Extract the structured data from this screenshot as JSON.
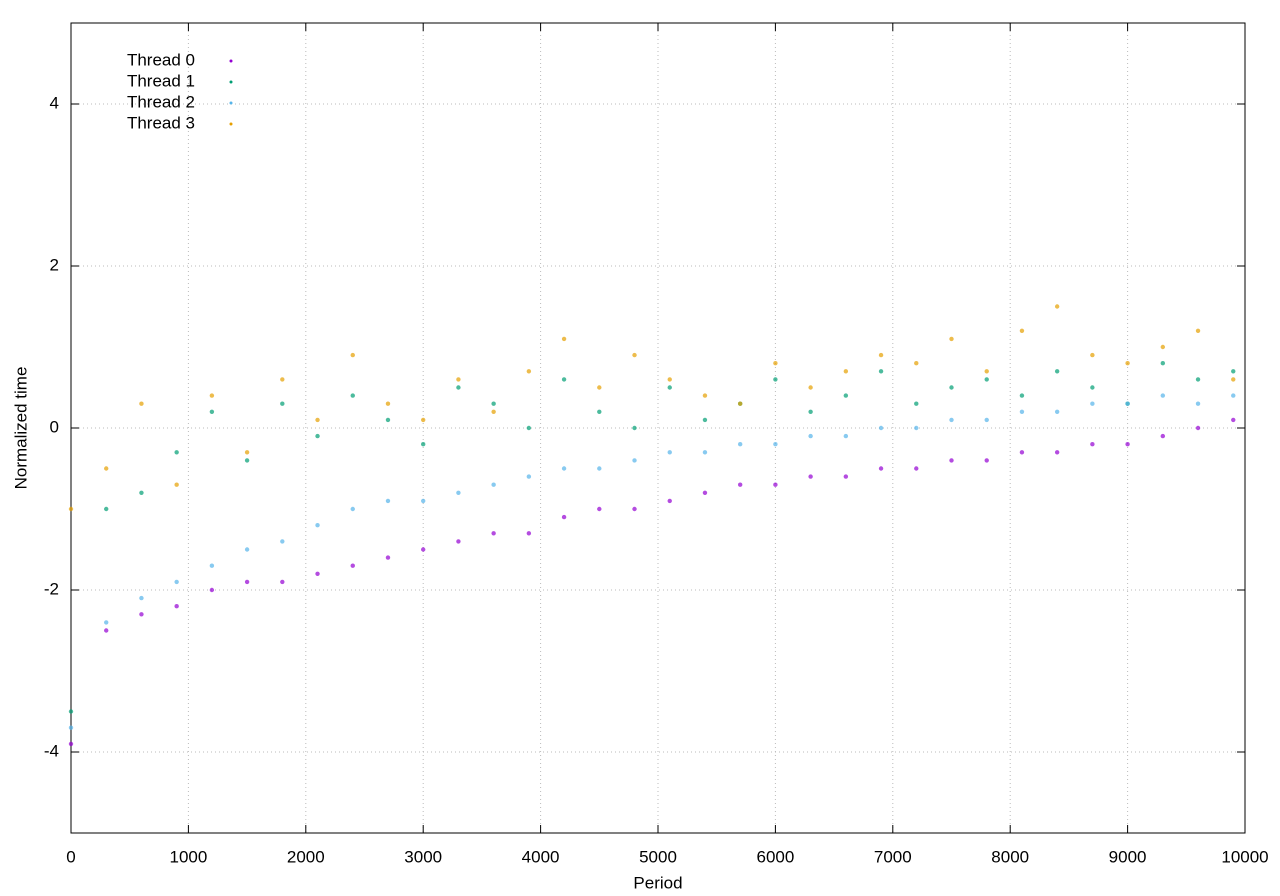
{
  "chart_data": {
    "type": "scatter",
    "x_label": "Period",
    "y_label": "Normalized time",
    "x": [
      0,
      300,
      600,
      900,
      1200,
      1500,
      1800,
      2100,
      2400,
      2700,
      3000,
      3300,
      3600,
      3900,
      4200,
      4500,
      4800,
      5100,
      5400,
      5700,
      6000,
      6300,
      6600,
      6900,
      7200,
      7500,
      7800,
      8100,
      8400,
      8700,
      9000,
      9300,
      9600,
      9900
    ],
    "series": [
      {
        "name": "Thread 0",
        "color": "#9400d3",
        "values": [
          -3.9,
          -2.5,
          -2.3,
          -2.2,
          -2.0,
          -1.9,
          -1.9,
          -1.8,
          -1.7,
          -1.6,
          -1.5,
          -1.4,
          -1.3,
          -1.3,
          -1.1,
          -1.0,
          -1.0,
          -0.9,
          -0.8,
          -0.7,
          -0.7,
          -0.6,
          -0.6,
          -0.5,
          -0.5,
          -0.4,
          -0.4,
          -0.3,
          -0.3,
          -0.2,
          -0.2,
          -0.1,
          0,
          0.1
        ]
      },
      {
        "name": "Thread 1",
        "color": "#009e73",
        "values": [
          -3.5,
          -1.0,
          -0.8,
          -0.3,
          0.2,
          -0.4,
          0.3,
          -0.1,
          0.4,
          0.1,
          -0.2,
          0.5,
          0.3,
          0.0,
          0.6,
          0.2,
          0.0,
          0.5,
          0.1,
          0.3,
          0.6,
          0.2,
          0.4,
          0.7,
          0.3,
          0.5,
          0.6,
          0.4,
          0.7,
          0.5,
          0.3,
          0.8,
          0.6,
          0.7
        ]
      },
      {
        "name": "Thread 2",
        "color": "#56b4e9",
        "values": [
          -3.7,
          -2.4,
          -2.1,
          -1.9,
          -1.7,
          -1.5,
          -1.4,
          -1.2,
          -1.0,
          -0.9,
          -0.9,
          -0.8,
          -0.7,
          -0.6,
          -0.5,
          -0.5,
          -0.4,
          -0.3,
          -0.3,
          -0.2,
          -0.2,
          -0.1,
          -0.1,
          0,
          0,
          0.1,
          0.1,
          0.2,
          0.2,
          0.3,
          0.3,
          0.4,
          0.3,
          0.4
        ]
      },
      {
        "name": "Thread 3",
        "color": "#e69f00",
        "values": [
          -1.0,
          -0.5,
          0.3,
          -0.7,
          0.4,
          -0.3,
          0.6,
          0.1,
          0.9,
          0.3,
          0.1,
          0.6,
          0.2,
          0.7,
          1.1,
          0.5,
          0.9,
          0.6,
          0.4,
          0.3,
          0.8,
          0.5,
          0.7,
          0.9,
          0.8,
          1.1,
          0.7,
          1.2,
          1.5,
          0.9,
          0.8,
          1.0,
          1.2,
          0.6
        ]
      }
    ],
    "xlim": [
      0,
      10000
    ],
    "xticks": [
      0,
      1000,
      2000,
      3000,
      4000,
      5000,
      6000,
      7000,
      8000,
      9000,
      10000
    ],
    "ylim": [
      -5,
      5
    ],
    "yticks": [
      -4,
      -2,
      0,
      2,
      4
    ],
    "grid": true,
    "legend": "top-left"
  }
}
